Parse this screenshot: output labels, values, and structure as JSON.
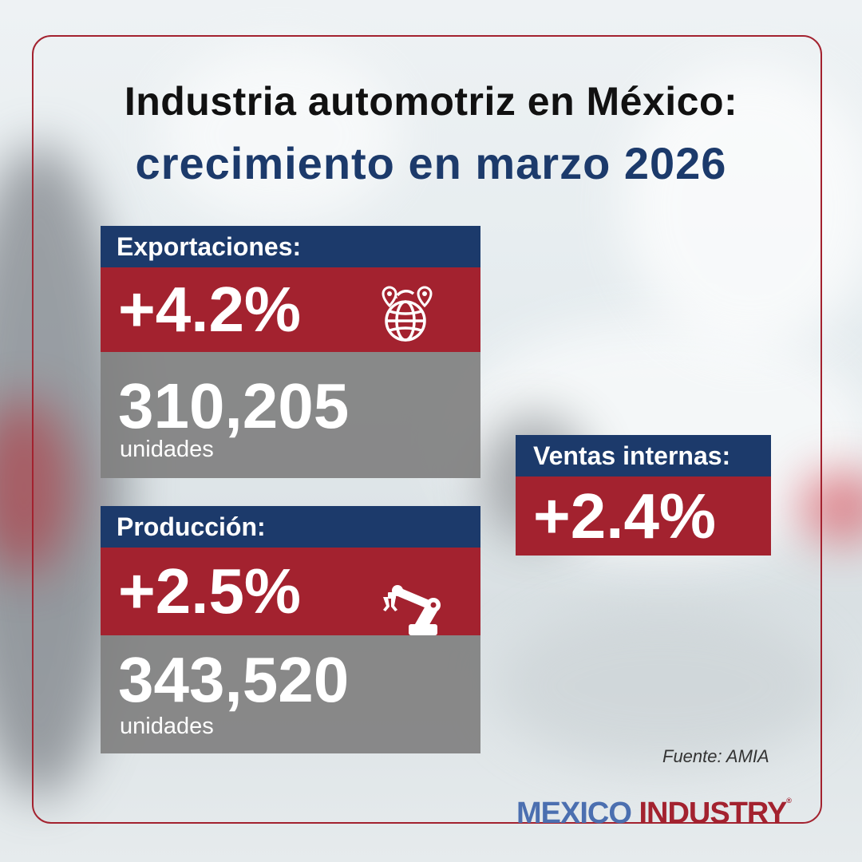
{
  "title": {
    "line1": "Industria automotriz en México:",
    "line2": "crecimiento en marzo 2026"
  },
  "exports": {
    "label": "Exportaciones:",
    "percent": "+4.2%",
    "units_value": "310,205",
    "units_label": "unidades",
    "icon": "globe-location-icon"
  },
  "production": {
    "label": "Producción:",
    "percent": "+2.5%",
    "units_value": "343,520",
    "units_label": "unidades",
    "icon": "robot-arm-icon"
  },
  "domestic_sales": {
    "label": "Ventas internas:",
    "percent": "+2.4%"
  },
  "source": "Fuente: AMIA",
  "logo": {
    "part1": "MEXICO",
    "part2": "INDUSTRY",
    "mark": "®"
  },
  "colors": {
    "navy": "#1c3a6b",
    "red": "#a3222f",
    "grey": "#808080",
    "logo_blue": "#4b6fb0"
  }
}
